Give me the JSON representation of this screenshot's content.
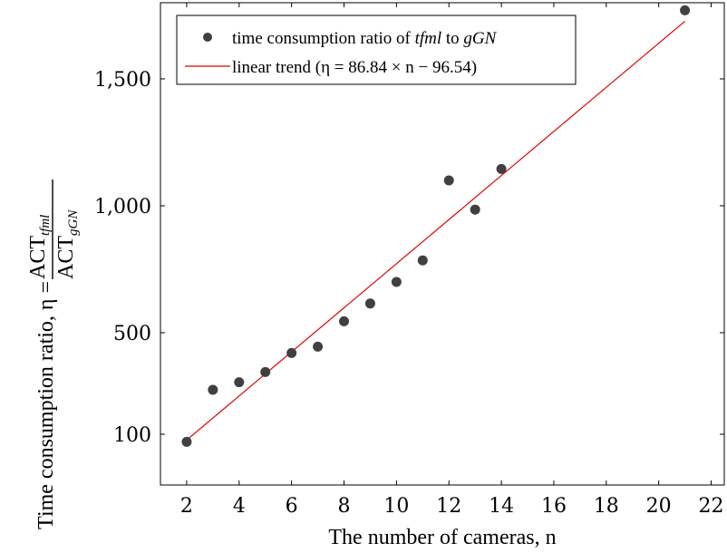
{
  "chart_data": {
    "type": "scatter",
    "xlabel": "The number of cameras, n",
    "ylabel_text": "Time consumption ratio, η =",
    "ylabel_fraction": {
      "numerator": "ACT",
      "numerator_sub": "tfml",
      "denominator": "ACT",
      "denominator_sub": "gGN"
    },
    "xlim": [
      1,
      22.5
    ],
    "ylim": [
      -100,
      1800
    ],
    "xticks": [
      2,
      4,
      6,
      8,
      10,
      12,
      14,
      16,
      18,
      20,
      22
    ],
    "yticks": [
      100,
      500,
      1000,
      1500
    ],
    "ytick_labels": [
      "100",
      "500",
      "1,000",
      "1,500"
    ],
    "legend_position": "top-left",
    "series": [
      {
        "name": "time consumption ratio of tfml to gGN",
        "kind": "scatter",
        "color": "#404040",
        "x": [
          2,
          3,
          4,
          5,
          6,
          7,
          8,
          9,
          10,
          11,
          12,
          13,
          14,
          21
        ],
        "y": [
          70,
          275,
          305,
          345,
          420,
          445,
          545,
          615,
          700,
          785,
          1100,
          985,
          1145,
          1770
        ]
      },
      {
        "name": "linear trend (η = 86.84 × n − 96.54)",
        "kind": "line",
        "color": "#e00000",
        "x": [
          2,
          21
        ],
        "y": [
          77.14,
          1727.1
        ]
      }
    ]
  },
  "legend": {
    "scatter_prefix": "time consumption ratio of ",
    "scatter_a": "tfml",
    "scatter_mid": " to ",
    "scatter_b": "gGN",
    "line_label": "linear trend (η = 86.84 × n − 96.54)"
  }
}
